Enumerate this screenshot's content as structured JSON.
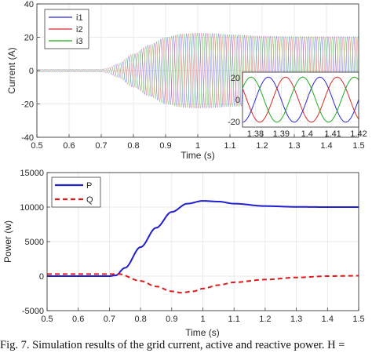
{
  "caption": "Fig. 7.  Simulation results of the grid current, active and reactive power. H =",
  "chart_data": [
    {
      "type": "line",
      "xlabel": "Time (s)",
      "ylabel": "Current (A)",
      "xlim": [
        0.5,
        1.5
      ],
      "ylim": [
        -40,
        40
      ],
      "xticks": [
        "0.5",
        "0.6",
        "0.7",
        "0.8",
        "0.9",
        "1",
        "1.1",
        "1.2",
        "1.3",
        "1.4",
        "1.5"
      ],
      "yticks": [
        "-40",
        "-20",
        "0",
        "20",
        "40"
      ],
      "grid": true,
      "legend_position": "top-left",
      "series": [
        {
          "name": "i1",
          "color": "#2a2ad6",
          "phase_deg": 0
        },
        {
          "name": "i2",
          "color": "#d62a2a",
          "phase_deg": -120
        },
        {
          "name": "i3",
          "color": "#1fae1f",
          "phase_deg": 120
        }
      ],
      "frequency_hz": 50,
      "envelope": {
        "x": [
          0.5,
          0.7,
          0.72,
          0.75,
          0.8,
          0.85,
          0.9,
          0.95,
          1.0,
          1.05,
          1.1,
          1.2,
          1.3,
          1.5
        ],
        "amplitude": [
          0.8,
          0.8,
          1.5,
          4,
          10,
          15.5,
          20,
          22,
          22.6,
          22.3,
          21.6,
          20.8,
          20.5,
          20.5
        ]
      },
      "inset": {
        "xlim": [
          1.375,
          1.42
        ],
        "ylim": [
          -25,
          25
        ],
        "xticks": [
          "1.38",
          "1.39",
          "1.4",
          "1.41",
          "1.42"
        ],
        "yticks": [
          "-20",
          "0",
          "20"
        ],
        "amplitude": 20.5
      }
    },
    {
      "type": "line",
      "xlabel": "Time (s)",
      "ylabel": "Power (w)",
      "xlim": [
        0.5,
        1.5
      ],
      "ylim": [
        -5000,
        15000
      ],
      "xticks": [
        "0.5",
        "0.6",
        "0.7",
        "0.8",
        "0.9",
        "1",
        "1.1",
        "1.2",
        "1.3",
        "1.4",
        "1.5"
      ],
      "yticks": [
        "-5000",
        "0",
        "5000",
        "10000",
        "15000"
      ],
      "grid": true,
      "legend_position": "top-left",
      "series": [
        {
          "name": "P",
          "color": "#1f1fd0",
          "dash": "solid",
          "x": [
            0.5,
            0.7,
            0.72,
            0.75,
            0.8,
            0.85,
            0.9,
            0.95,
            1.0,
            1.05,
            1.1,
            1.2,
            1.3,
            1.4,
            1.5
          ],
          "y": [
            0,
            0,
            100,
            1200,
            4200,
            7000,
            9300,
            10500,
            10900,
            10800,
            10500,
            10150,
            10030,
            10000,
            10000
          ]
        },
        {
          "name": "Q",
          "color": "#e01b1b",
          "dash": "dashed",
          "x": [
            0.5,
            0.7,
            0.73,
            0.8,
            0.85,
            0.9,
            0.93,
            0.97,
            1.0,
            1.05,
            1.1,
            1.2,
            1.3,
            1.4,
            1.5
          ],
          "y": [
            300,
            300,
            300,
            -700,
            -1500,
            -2200,
            -2400,
            -2200,
            -1800,
            -1300,
            -900,
            -500,
            -200,
            0,
            50
          ]
        }
      ]
    }
  ]
}
